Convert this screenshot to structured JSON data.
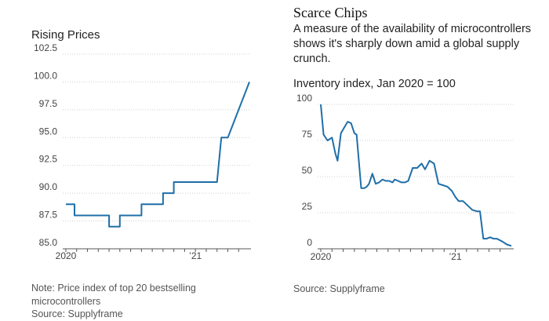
{
  "left": {
    "title": "Rising Prices",
    "note": "Note: Price index of top 20 bestselling microcontrollers",
    "source": "Source: Supplyframe"
  },
  "right": {
    "headline": "Scarce Chips",
    "description": "A measure of the availability of microcontrollers shows it's sharply down amid a global supply crunch.",
    "subtitle": "Inventory index, Jan 2020 = 100",
    "source": "Source: Supplyframe"
  },
  "colors": {
    "line": "#1f6fa8",
    "grid": "#cfcfcf",
    "axis": "#555555"
  },
  "chart_data": [
    {
      "type": "line",
      "title": "Rising Prices",
      "xlabel": "",
      "ylabel": "",
      "grid": true,
      "ylim": [
        85.0,
        102.5
      ],
      "yticks": [
        85.0,
        87.5,
        90.0,
        92.5,
        95.0,
        97.5,
        100.0,
        102.5
      ],
      "ytick_labels": [
        "85.0",
        "87.5",
        "90.0",
        "92.5",
        "95.0",
        "97.5",
        "100.0",
        "102.5"
      ],
      "xlim": [
        0,
        17
      ],
      "xtick_labels": [
        {
          "at": 0,
          "label": "2020"
        },
        {
          "at": 12,
          "label": "’21"
        }
      ],
      "minor_xticks": [
        0,
        1,
        2,
        3,
        4,
        5,
        6,
        7,
        8,
        9,
        10,
        11,
        12,
        13,
        14,
        15,
        16
      ],
      "series": [
        {
          "x": [
            0,
            0.8,
            0.8,
            2,
            3,
            4,
            4,
            5,
            5,
            6,
            7,
            7,
            8,
            9,
            9,
            10,
            10,
            11,
            12,
            13,
            14,
            14.4,
            15,
            15.4,
            17
          ],
          "y": [
            89,
            89,
            88,
            88,
            88,
            88,
            87,
            87,
            88,
            88,
            88,
            89,
            89,
            89,
            90,
            90,
            91,
            91,
            91,
            91,
            91,
            95,
            95,
            96,
            100
          ]
        }
      ]
    },
    {
      "type": "line",
      "title": "Inventory index, Jan 2020 = 100",
      "xlabel": "",
      "ylabel": "",
      "grid": true,
      "ylim": [
        0,
        100
      ],
      "yticks": [
        0,
        25,
        50,
        75,
        100
      ],
      "ytick_labels": [
        "0",
        "25",
        "50",
        "75",
        "100"
      ],
      "xlim": [
        0,
        17
      ],
      "xtick_labels": [
        {
          "at": 0,
          "label": "2020"
        },
        {
          "at": 12,
          "label": "’21"
        }
      ],
      "minor_xticks": [
        0,
        1,
        2,
        3,
        4,
        5,
        6,
        7,
        8,
        9,
        10,
        11,
        12,
        13,
        14,
        15,
        16
      ],
      "series": [
        {
          "x": [
            0,
            0.25,
            0.6,
            1,
            1.3,
            1.5,
            1.8,
            2.1,
            2.4,
            2.7,
            3,
            3.2,
            3.6,
            3.9,
            4.1,
            4.3,
            4.6,
            4.9,
            5.2,
            5.5,
            5.8,
            6.1,
            6.4,
            6.6,
            6.9,
            7.2,
            7.5,
            7.8,
            8.2,
            8.6,
            9,
            9.3,
            9.7,
            10.1,
            10.5,
            10.9,
            11.3,
            11.7,
            12,
            12.3,
            12.7,
            13.1,
            13.5,
            13.9,
            14.2,
            14.5,
            14.8,
            15.1,
            15.4,
            15.7,
            16.2,
            16.6,
            17
          ],
          "y": [
            100,
            79,
            75,
            77,
            66,
            61,
            80,
            84,
            88,
            87,
            80,
            79,
            42,
            42,
            43,
            45,
            52,
            45,
            46,
            48,
            47,
            47,
            46,
            48,
            47,
            46,
            46,
            47,
            56,
            56,
            59,
            55,
            61,
            59,
            45,
            44,
            43,
            40,
            36,
            33,
            33,
            30,
            27,
            26,
            26,
            7,
            7,
            8,
            7,
            7,
            5,
            3,
            2
          ]
        }
      ]
    }
  ]
}
